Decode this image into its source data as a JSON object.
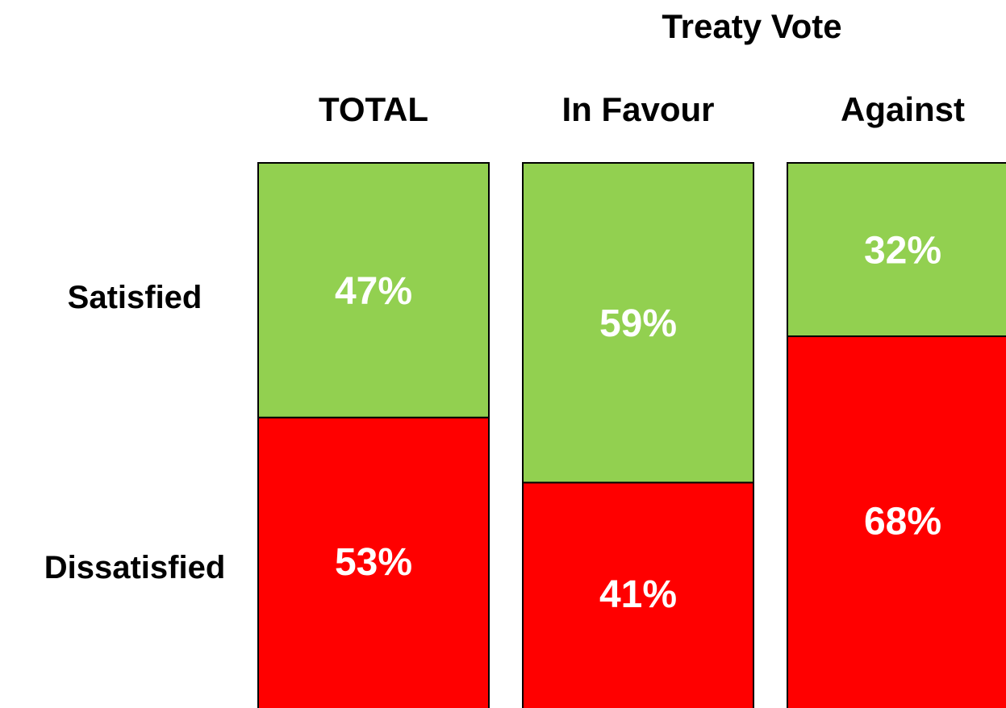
{
  "chart_data": {
    "type": "bar",
    "stacked": true,
    "normalized_percent": true,
    "group_title": "Treaty Vote",
    "categories": [
      "TOTAL",
      "In Favour",
      "Against"
    ],
    "series": [
      {
        "name": "Satisfied",
        "values": [
          47,
          59,
          32
        ],
        "color": "#92d050"
      },
      {
        "name": "Dissatisfied",
        "values": [
          53,
          41,
          68
        ],
        "color": "#ff0000"
      }
    ],
    "value_labels": [
      [
        "47%",
        "59%",
        "32%"
      ],
      [
        "53%",
        "41%",
        "68%"
      ]
    ],
    "ylim": [
      0,
      100
    ],
    "grid": false
  }
}
